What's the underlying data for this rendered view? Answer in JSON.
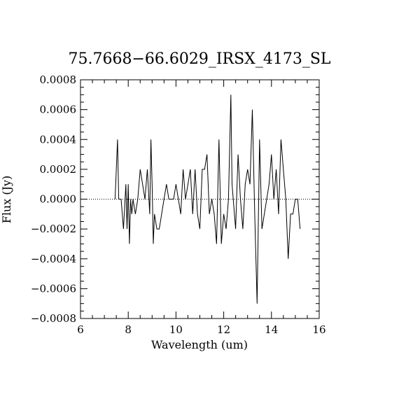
{
  "chart_data": {
    "type": "line",
    "title": "75.7668−66.6029_IRSX_4173_SL",
    "xlabel": "Wavelength (um)",
    "ylabel": "Flux (Jy)",
    "xlim": [
      6,
      16
    ],
    "ylim": [
      -0.0008,
      0.0008
    ],
    "xticks": [
      6,
      8,
      10,
      12,
      14,
      16
    ],
    "xtick_labels": [
      "6",
      "8",
      "10",
      "12",
      "14",
      "16"
    ],
    "yticks": [
      0.0008,
      0.0006,
      0.0004,
      0.0002,
      0.0,
      -0.0002,
      -0.0004,
      -0.0006,
      -0.0008
    ],
    "ytick_labels": [
      "0.0008",
      "0.0006",
      "0.0004",
      "0.0002",
      "0.0000",
      "−0.0002",
      "−0.0004",
      "−0.0006",
      "−0.0008"
    ],
    "reference_line": {
      "y": 0.0,
      "style": "dotted"
    },
    "series": [
      {
        "x": [
          7.45,
          7.55,
          7.6,
          7.7,
          7.8,
          7.9,
          7.95,
          8.0,
          8.05,
          8.1,
          8.15,
          8.2,
          8.3,
          8.4,
          8.5,
          8.6,
          8.7,
          8.8,
          8.9,
          8.95,
          9.0,
          9.05,
          9.1,
          9.2,
          9.3,
          9.4,
          9.5,
          9.6,
          9.7,
          9.8,
          9.9,
          10.0,
          10.1,
          10.2,
          10.3,
          10.4,
          10.5,
          10.6,
          10.7,
          10.8,
          10.9,
          11.0,
          11.1,
          11.2,
          11.3,
          11.4,
          11.5,
          11.6,
          11.7,
          11.8,
          11.9,
          12.0,
          12.1,
          12.2,
          12.3,
          12.35,
          12.4,
          12.5,
          12.6,
          12.7,
          12.8,
          12.9,
          13.0,
          13.1,
          13.2,
          13.3,
          13.4,
          13.5,
          13.6,
          13.7,
          13.8,
          13.9,
          14.0,
          14.1,
          14.2,
          14.3,
          14.4,
          14.5,
          14.6,
          14.7,
          14.8,
          14.9,
          15.0,
          15.1,
          15.2
        ],
        "y": [
          0.0,
          0.0004,
          0.0,
          0.0,
          -0.0002,
          0.0001,
          -0.0002,
          0.0001,
          -0.0003,
          0.0,
          -0.0001,
          0.0,
          -0.0001,
          0.0,
          0.0002,
          0.0001,
          0.0,
          0.0002,
          -0.0001,
          0.0004,
          0.0001,
          -0.0003,
          -0.0001,
          -0.0002,
          -0.0002,
          -0.0001,
          0.0,
          0.0001,
          0.0,
          0.0,
          0.0,
          0.0001,
          0.0,
          -0.0001,
          0.0002,
          0.0,
          0.0001,
          0.0002,
          -0.0001,
          0.0002,
          -0.0001,
          -0.0002,
          0.0002,
          0.0002,
          0.0003,
          -0.0001,
          0.0,
          -0.0001,
          -0.0003,
          0.0004,
          -0.0003,
          -0.0001,
          -0.0002,
          0.0,
          0.0007,
          0.0001,
          0.0,
          -0.0002,
          0.0003,
          0.0,
          -0.0002,
          0.0001,
          0.0002,
          0.0001,
          0.0006,
          -0.0001,
          -0.0007,
          0.0004,
          -0.0002,
          -0.0001,
          0.0,
          0.0001,
          0.0003,
          0.0,
          0.0002,
          -0.0001,
          0.0004,
          0.0002,
          0.0,
          -0.0004,
          -0.0001,
          -0.0001,
          0.0,
          0.0,
          -0.0002
        ]
      }
    ]
  }
}
